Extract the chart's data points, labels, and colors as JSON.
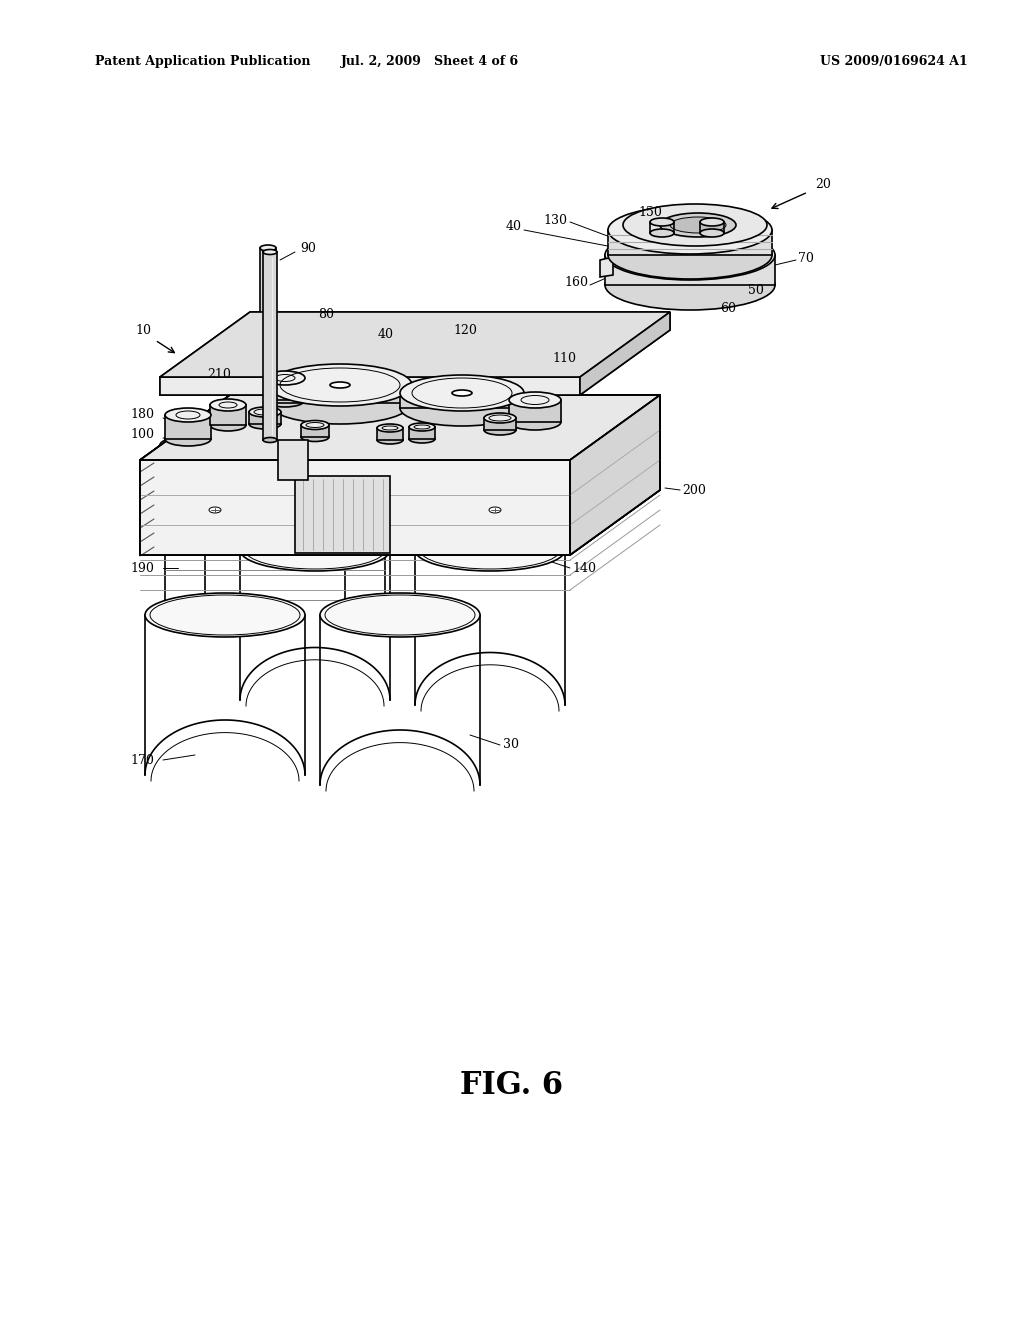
{
  "background_color": "#ffffff",
  "header_left": "Patent Application Publication",
  "header_middle": "Jul. 2, 2009   Sheet 4 of 6",
  "header_right": "US 2009/0169624 A1",
  "figure_label": "FIG. 6",
  "lc": "#000000",
  "lw": 1.2,
  "tlw": 0.7
}
